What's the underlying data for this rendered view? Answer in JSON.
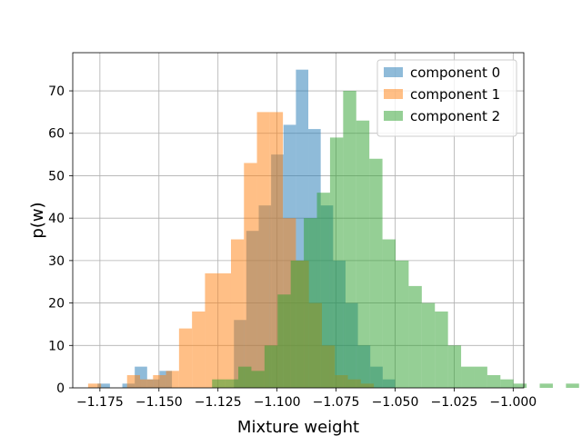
{
  "chart_data": {
    "type": "histogram",
    "xlabel": "Mixture weight",
    "ylabel": "p(w)",
    "xlim": [
      -1.1865,
      -0.9955
    ],
    "ylim": [
      0,
      79
    ],
    "grid": true,
    "legend_position": "top-right",
    "x_ticks": [
      -1.175,
      -1.15,
      -1.125,
      -1.1,
      -1.075,
      -1.05,
      -1.025,
      -1.0
    ],
    "x_tick_labels": [
      "−1.175",
      "−1.150",
      "−1.125",
      "−1.100",
      "−1.075",
      "−1.050",
      "−1.025",
      "−1.000"
    ],
    "y_ticks": [
      0,
      10,
      20,
      30,
      40,
      50,
      60,
      70
    ],
    "y_tick_labels": [
      "0",
      "10",
      "20",
      "30",
      "40",
      "50",
      "60",
      "70"
    ],
    "series": [
      {
        "name": "component 0",
        "color": "#1f77b4",
        "bin_start": -1.176,
        "bin_width": 0.00525,
        "counts": [
          1,
          0,
          1,
          5,
          2,
          4,
          0,
          0,
          0,
          0,
          0,
          16,
          37,
          43,
          55,
          62,
          75,
          61,
          43,
          30,
          20,
          10,
          5,
          2,
          0,
          0,
          0,
          0,
          0,
          0,
          0,
          0,
          0,
          0,
          0,
          0,
          0
        ]
      },
      {
        "name": "component 1",
        "color": "#ff7f0e",
        "bin_start": -1.18,
        "bin_width": 0.0055,
        "counts": [
          1,
          0,
          0,
          3,
          2,
          3,
          4,
          14,
          18,
          27,
          27,
          35,
          53,
          65,
          65,
          40,
          30,
          20,
          10,
          3,
          2,
          1
        ]
      },
      {
        "name": "component 2",
        "color": "#2ca02c",
        "bin_start": -1.1275,
        "bin_width": 0.00555,
        "counts": [
          2,
          2,
          5,
          4,
          10,
          22,
          30,
          40,
          46,
          59,
          70,
          63,
          54,
          35,
          30,
          24,
          20,
          18,
          10,
          5,
          5,
          3,
          2,
          1,
          0,
          1,
          0,
          1
        ]
      }
    ]
  }
}
